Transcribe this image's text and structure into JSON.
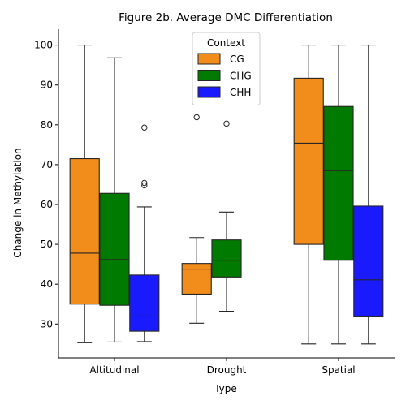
{
  "chart_data": {
    "type": "boxplot",
    "title": "Figure 2b. Average DMC Differentiation",
    "xlabel": "Type",
    "ylabel": "Change in Methylation",
    "categories": [
      "Altitudinal",
      "Drought",
      "Spatial"
    ],
    "ylim": [
      21.5,
      104
    ],
    "yticks": [
      30,
      40,
      50,
      60,
      70,
      80,
      90,
      100
    ],
    "grid": false,
    "legend": {
      "title": "Context",
      "placement": "top-center"
    },
    "series": [
      {
        "name": "CG",
        "color": "#f28c1a",
        "boxes": [
          {
            "whislo": 25.3,
            "q1": 35.0,
            "med": 47.8,
            "q3": 71.5,
            "whishi": 100.0,
            "fliers": []
          },
          {
            "whislo": 30.2,
            "q1": 37.5,
            "med": 43.8,
            "q3": 45.2,
            "whishi": 51.7,
            "fliers": [
              81.9
            ]
          },
          {
            "whislo": 25.0,
            "q1": 50.0,
            "med": 75.4,
            "q3": 91.7,
            "whishi": 100.0,
            "fliers": []
          }
        ]
      },
      {
        "name": "CHG",
        "color": "#007a00",
        "boxes": [
          {
            "whislo": 25.5,
            "q1": 34.7,
            "med": 46.2,
            "q3": 62.8,
            "whishi": 96.8,
            "fliers": []
          },
          {
            "whislo": 33.2,
            "q1": 41.8,
            "med": 46.0,
            "q3": 51.1,
            "whishi": 58.1,
            "fliers": [
              80.3
            ]
          },
          {
            "whislo": 25.0,
            "q1": 46.0,
            "med": 68.5,
            "q3": 84.6,
            "whishi": 100.0,
            "fliers": []
          }
        ]
      },
      {
        "name": "CHH",
        "color": "#1a1aff",
        "boxes": [
          {
            "whislo": 25.6,
            "q1": 28.2,
            "med": 32.0,
            "q3": 42.3,
            "whishi": 59.4,
            "fliers": [
              64.8,
              65.4,
              79.3
            ]
          },
          null,
          {
            "whislo": 25.0,
            "q1": 31.8,
            "med": 41.1,
            "q3": 59.6,
            "whishi": 100.0,
            "fliers": []
          }
        ]
      }
    ]
  }
}
